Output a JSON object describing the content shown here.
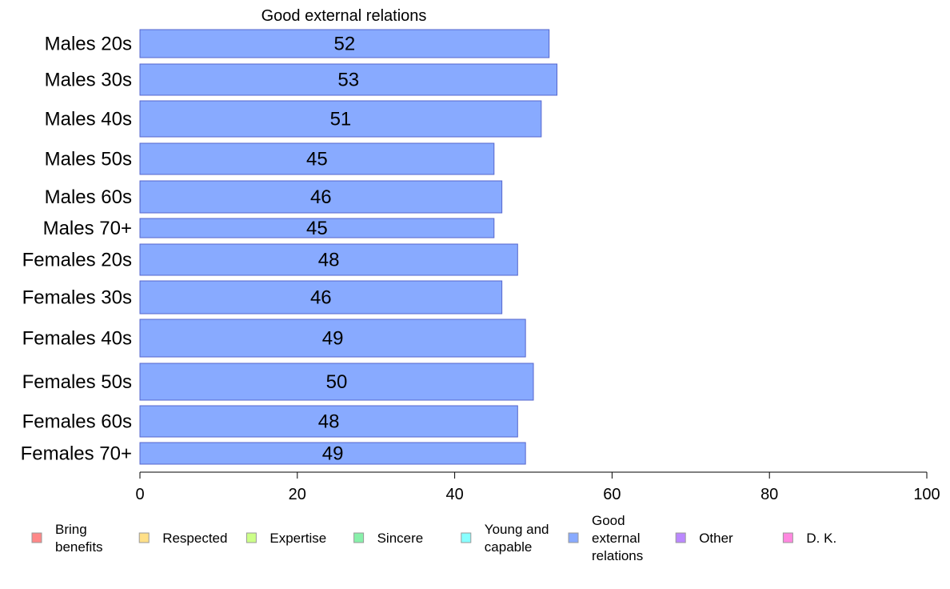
{
  "chart_data": {
    "type": "bar",
    "orientation": "horizontal",
    "title": "Good external relations",
    "categories": [
      "Males 20s",
      "Males 30s",
      "Males 40s",
      "Males 50s",
      "Males 60s",
      "Males 70+",
      "Females 20s",
      "Females 30s",
      "Females 40s",
      "Females 50s",
      "Females 60s",
      "Females 70+"
    ],
    "values": [
      52,
      53,
      51,
      45,
      46,
      45,
      48,
      46,
      49,
      50,
      48,
      49
    ],
    "xlim": [
      0,
      100
    ],
    "xticks": [
      0,
      20,
      40,
      60,
      80,
      100
    ],
    "xlabel": "",
    "ylabel": "",
    "grid": false,
    "bar_color": "#88aaff",
    "bar_edge_color": "#5566cc",
    "legend": {
      "placement": "bottom",
      "items": [
        {
          "label": [
            "Bring",
            "benefits"
          ],
          "color": "#ff8888"
        },
        {
          "label": [
            "Respected"
          ],
          "color": "#ffe088"
        },
        {
          "label": [
            "Expertise"
          ],
          "color": "#ccff88"
        },
        {
          "label": [
            "Sincere"
          ],
          "color": "#88f0aa"
        },
        {
          "label": [
            "Young and",
            "capable"
          ],
          "color": "#88ffff"
        },
        {
          "label": [
            "Good",
            "external",
            "relations"
          ],
          "color": "#88aaff"
        },
        {
          "label": [
            "Other"
          ],
          "color": "#bb88ff"
        },
        {
          "label": [
            "D. K."
          ],
          "color": "#ff88e0"
        }
      ]
    }
  }
}
